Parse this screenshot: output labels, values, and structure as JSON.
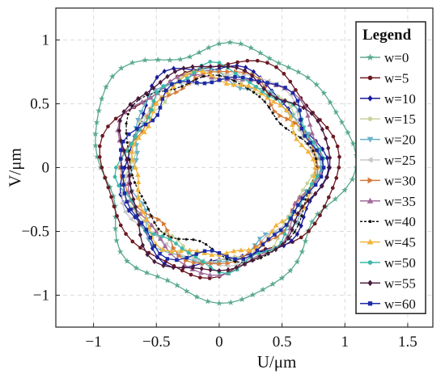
{
  "chart_data": {
    "type": "line",
    "title": "",
    "xlabel": "U/μm",
    "ylabel": "V/μm",
    "xlim": [
      -1.3,
      1.7
    ],
    "ylim": [
      -1.25,
      1.25
    ],
    "xticks": [
      -1,
      -0.5,
      0,
      0.5,
      1,
      1.5
    ],
    "yticks": [
      1,
      0.5,
      0,
      -0.5,
      -1
    ],
    "xtick_labels": [
      "−1",
      "−0.5",
      "0",
      "0.5",
      "1",
      "1.5"
    ],
    "ytick_labels": [
      "1",
      "0.5",
      "0",
      "−0.5",
      "−1"
    ],
    "grid": true,
    "legend_title": "Legend",
    "legend_position": "top-right",
    "series": [
      {
        "name": "w=0",
        "color": "#5aaa8f",
        "marker": "star",
        "base": 0.99,
        "harmonics": [
          [
            0.07,
            3,
            0.4
          ],
          [
            0.05,
            5,
            1.2
          ],
          [
            0.03,
            8,
            2.0
          ]
        ]
      },
      {
        "name": "w=5",
        "color": "#6b1a22",
        "marker": "circle",
        "base": 0.86,
        "harmonics": [
          [
            0.07,
            2,
            1.0
          ],
          [
            0.04,
            4,
            2.5
          ],
          [
            0.03,
            7,
            0.3
          ]
        ]
      },
      {
        "name": "w=10",
        "color": "#1a1a99",
        "marker": "diamond",
        "base": 0.78,
        "harmonics": [
          [
            0.05,
            3,
            2.2
          ],
          [
            0.04,
            6,
            0.9
          ],
          [
            0.02,
            9,
            1.7
          ]
        ]
      },
      {
        "name": "w=15",
        "color": "#c7d39a",
        "marker": "circle",
        "base": 0.72,
        "harmonics": [
          [
            0.04,
            4,
            0.5
          ],
          [
            0.03,
            7,
            1.9
          ],
          [
            0.02,
            10,
            0.2
          ]
        ]
      },
      {
        "name": "w=20",
        "color": "#6ab0c8",
        "marker": "triangle-down",
        "base": 0.73,
        "harmonics": [
          [
            0.05,
            3,
            1.4
          ],
          [
            0.03,
            8,
            0.6
          ],
          [
            0.02,
            11,
            2.4
          ]
        ]
      },
      {
        "name": "w=25",
        "color": "#c8c8c8",
        "marker": "triangle-left",
        "base": 0.74,
        "harmonics": [
          [
            0.04,
            5,
            2.8
          ],
          [
            0.03,
            2,
            0.2
          ],
          [
            0.02,
            9,
            1.1
          ]
        ]
      },
      {
        "name": "w=30",
        "color": "#d47a3a",
        "marker": "triangle-right",
        "base": 0.72,
        "harmonics": [
          [
            0.05,
            4,
            1.7
          ],
          [
            0.03,
            6,
            0.4
          ],
          [
            0.02,
            10,
            2.9
          ]
        ]
      },
      {
        "name": "w=35",
        "color": "#a06a9a",
        "marker": "triangle-up",
        "base": 0.77,
        "harmonics": [
          [
            0.06,
            3,
            0.1
          ],
          [
            0.03,
            7,
            1.5
          ],
          [
            0.02,
            9,
            2.2
          ]
        ]
      },
      {
        "name": "w=40",
        "color": "#111111",
        "marker": "dot",
        "dashed": true,
        "base": 0.71,
        "harmonics": [
          [
            0.08,
            2,
            2.9
          ],
          [
            0.04,
            5,
            1.0
          ],
          [
            0.02,
            8,
            0.5
          ]
        ]
      },
      {
        "name": "w=45",
        "color": "#f0b43c",
        "marker": "triangle-up",
        "base": 0.7,
        "harmonics": [
          [
            0.04,
            3,
            2.0
          ],
          [
            0.03,
            6,
            2.6
          ],
          [
            0.02,
            11,
            0.7
          ]
        ]
      },
      {
        "name": "w=50",
        "color": "#3ab8a8",
        "marker": "circle",
        "base": 0.75,
        "harmonics": [
          [
            0.05,
            4,
            0.8
          ],
          [
            0.03,
            8,
            1.8
          ],
          [
            0.02,
            12,
            0.3
          ]
        ]
      },
      {
        "name": "w=55",
        "color": "#4a1a3a",
        "marker": "diamond",
        "base": 0.8,
        "harmonics": [
          [
            0.06,
            3,
            1.1
          ],
          [
            0.04,
            5,
            0.4
          ],
          [
            0.02,
            9,
            2.6
          ]
        ]
      },
      {
        "name": "w=60",
        "color": "#1c2aa6",
        "marker": "square",
        "base": 0.74,
        "harmonics": [
          [
            0.05,
            2,
            0.6
          ],
          [
            0.04,
            6,
            2.1
          ],
          [
            0.03,
            9,
            1.3
          ]
        ]
      }
    ]
  }
}
